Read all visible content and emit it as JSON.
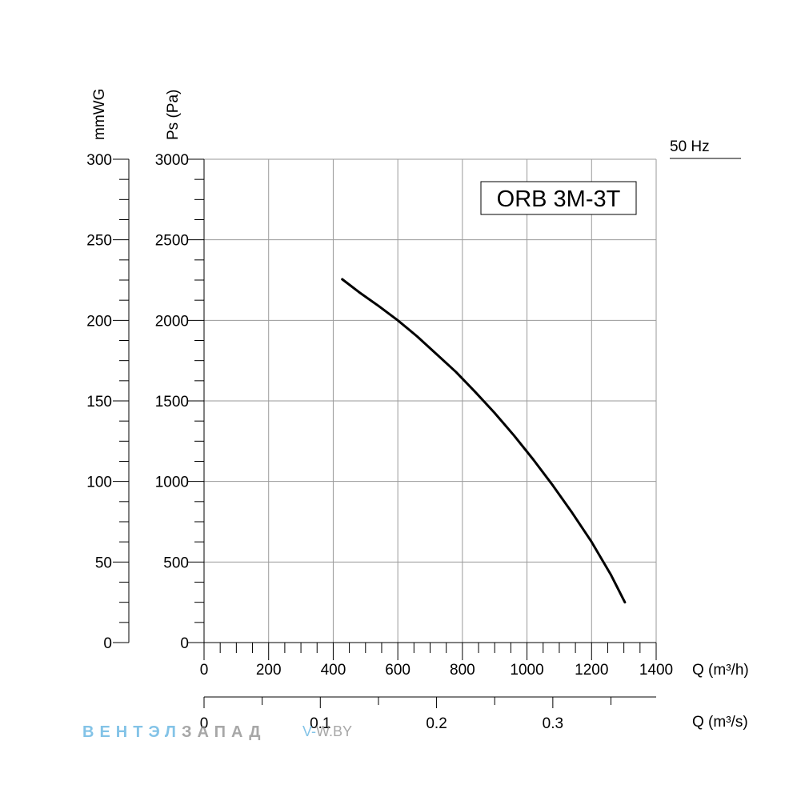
{
  "chart_data": {
    "type": "line",
    "model_label": "ORB 3M-3T",
    "frequency_label": "50 Hz",
    "x_label": "Q (m³/h)",
    "x2_label": "Q (m³/s)",
    "y_label": "Ps (Pa)",
    "y2_label": "mmWG",
    "xlim": [
      0,
      1400
    ],
    "ylim": [
      0,
      3000
    ],
    "x_ticks": [
      "0",
      "200",
      "400",
      "600",
      "800",
      "1000",
      "1200",
      "1400"
    ],
    "y_ticks": [
      "0",
      "500",
      "1000",
      "1500",
      "2000",
      "2500",
      "3000"
    ],
    "y2_ticks": [
      "0",
      "50",
      "100",
      "150",
      "200",
      "250",
      "300"
    ],
    "x2_ticks": [
      "0",
      "0.1",
      "0.2",
      "0.3"
    ],
    "grid": true,
    "series": [
      {
        "x": [
          428,
          480,
          540,
          600,
          660,
          720,
          780,
          840,
          900,
          960,
          1020,
          1080,
          1140,
          1200,
          1260,
          1303
        ],
        "y": [
          2255,
          2175,
          2090,
          2000,
          1900,
          1790,
          1680,
          1555,
          1425,
          1285,
          1135,
          975,
          805,
          625,
          420,
          250
        ]
      }
    ]
  },
  "watermark": {
    "brand_part1": "ВЕНТЭЛ",
    "brand_part2": "ЗАПАД",
    "site_part1": "V-",
    "site_part2": "W.BY"
  }
}
